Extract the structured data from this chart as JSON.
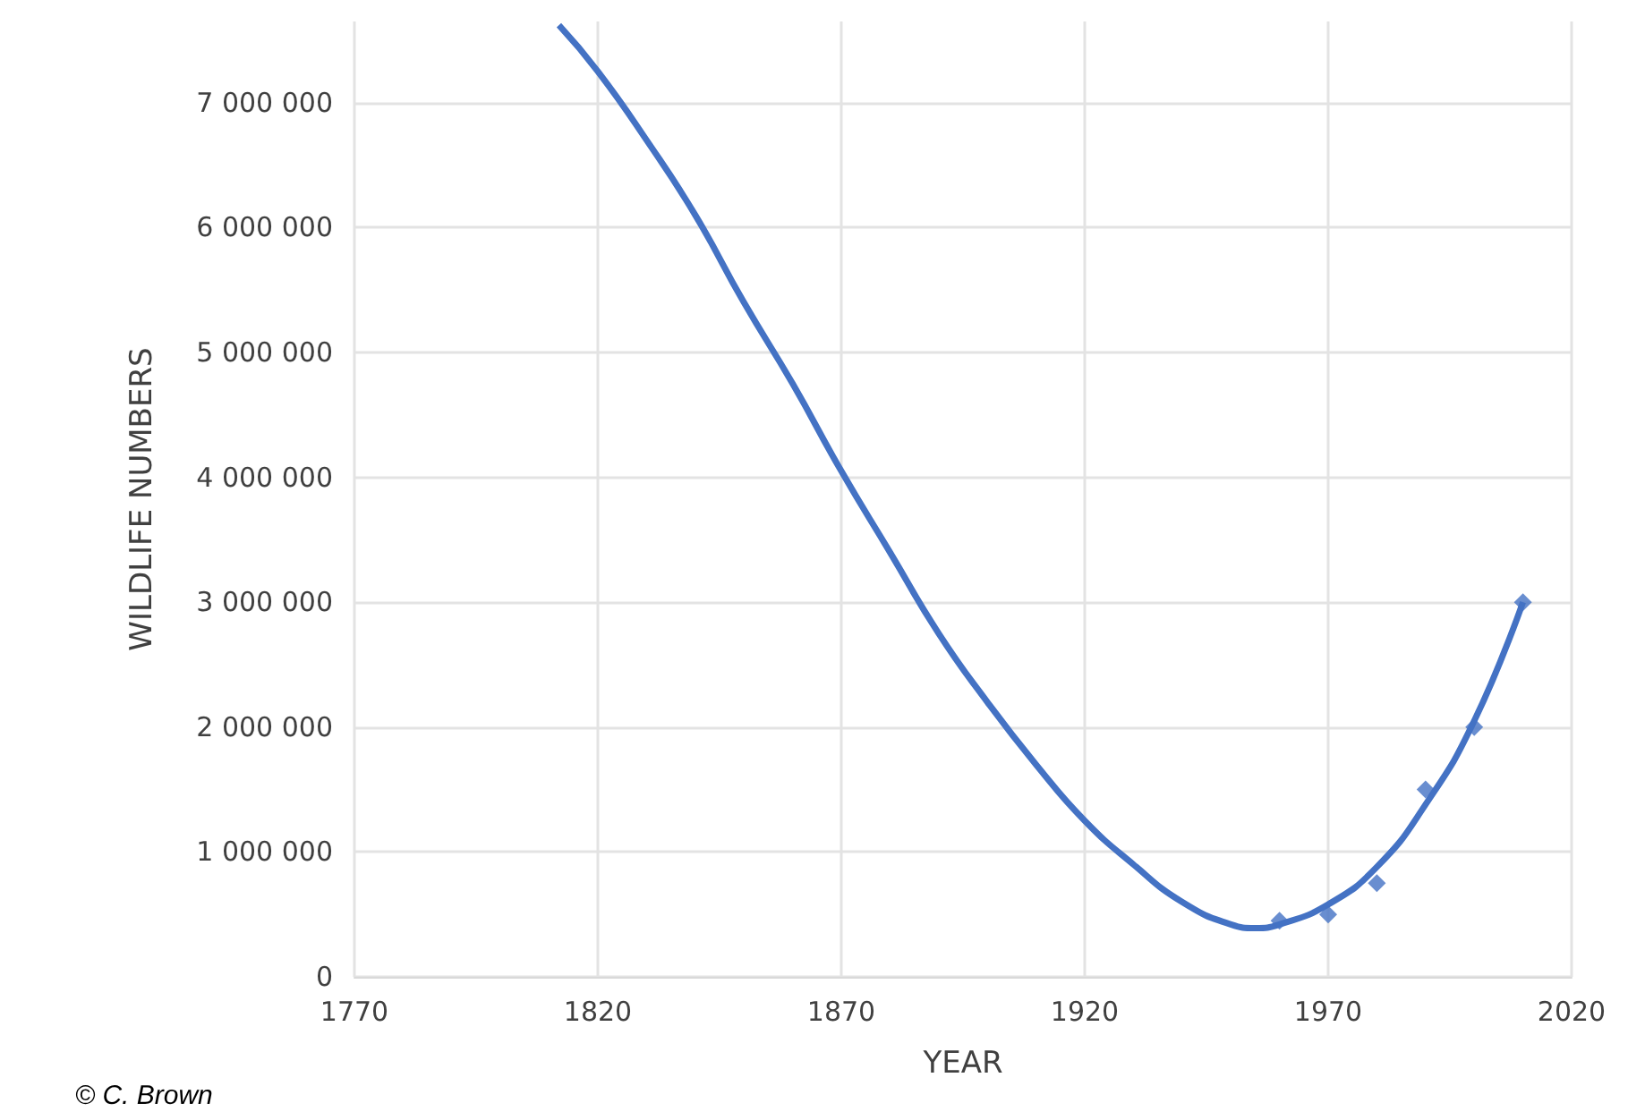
{
  "chart_data": {
    "type": "scatter",
    "xlabel": "YEAR",
    "ylabel": "WILDLIFE NUMBERS",
    "annotations": [
      "© C. Brown"
    ],
    "series": [
      {
        "marker": "diamond",
        "color": "#4472c4",
        "x": [
          1960,
          1970,
          1980,
          1990,
          2000,
          2010
        ],
        "values": [
          450000,
          500000,
          750000,
          1500000,
          2000000,
          3000000
        ]
      },
      {
        "type": "line",
        "marker": "none",
        "color": "#4472c4",
        "x": [
          1812,
          1820,
          1830,
          1840,
          1850,
          1860,
          1870,
          1880,
          1890,
          1900,
          1910,
          1920,
          1930,
          1940,
          1950,
          1955,
          1960,
          1970,
          1980,
          1990,
          2000,
          2010
        ],
        "values": [
          7620000,
          7250000,
          6700000,
          6100000,
          5400000,
          4750000,
          4050000,
          3400000,
          2750000,
          2200000,
          1700000,
          1250000,
          900000,
          600000,
          420000,
          390000,
          420000,
          580000,
          880000,
          1380000,
          2050000,
          3000000
        ]
      }
    ],
    "xlim": [
      1770,
      2020
    ],
    "xticks": [
      1770,
      1820,
      1870,
      1920,
      1970,
      2020
    ],
    "ylim": [
      0,
      7650000
    ],
    "yticks": [
      0,
      {
        "value": 1000000,
        "label": "1 000 000"
      },
      {
        "value": 2000000,
        "label": "2 000 000"
      },
      {
        "value": 3000000,
        "label": "3 000 000"
      },
      {
        "value": 4000000,
        "label": "4 000 000"
      },
      {
        "value": 5000000,
        "label": "5 000 000"
      },
      {
        "value": 6000000,
        "label": "6 000 000"
      },
      {
        "value": 7000000,
        "label": "7 000 000"
      }
    ],
    "grid": true
  }
}
